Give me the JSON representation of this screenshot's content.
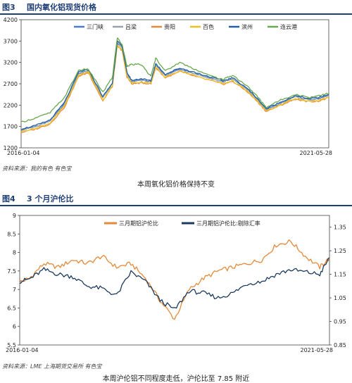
{
  "figure3": {
    "number": "图3",
    "title": "国内氧化铝现货价格",
    "source": "资料来源：我的有色    有色宝",
    "caption": "本周氧化铝价格保持不变"
  },
  "figure4": {
    "number": "图4",
    "title": "3 个月沪伦比",
    "source": "资料来源：LME    上海期货交易所    有色宝",
    "caption": "本周沪伦铝不同程度走低，沪伦比至 7.85 附近"
  },
  "chart_data": [
    {
      "type": "line",
      "title": "",
      "xlabel": "",
      "ylabel": "",
      "x_start": "2016-01-04",
      "x_end": "2021-05-28",
      "x_ticks": [
        "2016-01-04",
        "2021-05-28"
      ],
      "ylim": [
        1200,
        4200
      ],
      "yticks": [
        1200,
        1700,
        2200,
        2700,
        3200,
        3700,
        4200
      ],
      "grid": false,
      "legend": "top",
      "x": [
        "2016-01",
        "2016-04",
        "2016-07",
        "2016-10",
        "2017-01",
        "2017-03",
        "2017-06",
        "2017-08",
        "2017-09",
        "2017-10",
        "2017-11",
        "2017-12",
        "2018-02",
        "2018-04",
        "2018-05",
        "2018-07",
        "2018-10",
        "2019-01",
        "2019-04",
        "2019-07",
        "2019-09",
        "2019-12",
        "2020-02",
        "2020-04",
        "2020-07",
        "2020-10",
        "2021-01",
        "2021-03",
        "2021-05"
      ],
      "series": [
        {
          "name": "三门峡",
          "color": "#4a7bd0",
          "values": [
            1630,
            1700,
            1830,
            2230,
            2950,
            3000,
            2380,
            2700,
            3650,
            3550,
            2950,
            2750,
            2800,
            2750,
            3150,
            2900,
            3050,
            2950,
            2850,
            2750,
            2820,
            2580,
            2350,
            2100,
            2250,
            2400,
            2330,
            2360,
            2430
          ]
        },
        {
          "name": "吕梁",
          "color": "#9aa3ad",
          "values": [
            1620,
            1690,
            1820,
            2220,
            2940,
            2990,
            2370,
            2700,
            3680,
            3540,
            2920,
            2760,
            2780,
            2740,
            3140,
            2880,
            3040,
            2940,
            2840,
            2740,
            2810,
            2570,
            2340,
            2080,
            2240,
            2390,
            2320,
            2350,
            2420
          ]
        },
        {
          "name": "贵阳",
          "color": "#e5893a",
          "values": [
            1560,
            1640,
            1760,
            2150,
            2880,
            2960,
            2300,
            2640,
            3580,
            3480,
            2860,
            2700,
            2720,
            2700,
            3080,
            2840,
            2990,
            2880,
            2790,
            2690,
            2760,
            2520,
            2300,
            2050,
            2200,
            2340,
            2280,
            2300,
            2380
          ]
        },
        {
          "name": "百色",
          "color": "#f0c020",
          "values": [
            1580,
            1660,
            1780,
            2180,
            2900,
            2980,
            2320,
            2660,
            3600,
            3500,
            2880,
            2720,
            2740,
            2710,
            3090,
            2850,
            3000,
            2890,
            2800,
            2700,
            2770,
            2530,
            2310,
            2060,
            2210,
            2350,
            2290,
            2310,
            2390
          ]
        },
        {
          "name": "滨州",
          "color": "#2060a8",
          "values": [
            1640,
            1720,
            1850,
            2260,
            2980,
            3030,
            2400,
            2720,
            3700,
            3580,
            2970,
            2780,
            2820,
            2770,
            3170,
            2920,
            3070,
            2970,
            2870,
            2770,
            2840,
            2600,
            2370,
            2120,
            2270,
            2420,
            2350,
            2380,
            2450
          ]
        },
        {
          "name": "连云港",
          "color": "#6aa84f",
          "values": [
            1800,
            1900,
            2020,
            2380,
            3020,
            3040,
            2500,
            2850,
            3780,
            3620,
            3120,
            3150,
            3150,
            2870,
            3300,
            3000,
            3200,
            3050,
            2900,
            2800,
            2900,
            2650,
            2420,
            2150,
            2320,
            2450,
            2380,
            2430,
            2480
          ]
        }
      ]
    },
    {
      "type": "line",
      "title": "",
      "xlabel": "",
      "ylabel": "",
      "x_start": "2016-01-04",
      "x_end": "2021-05-28",
      "x_ticks": [
        "2016-01-04",
        "2021-05-28"
      ],
      "ylim": [
        5.5,
        9
      ],
      "yticks": [
        5.5,
        6,
        6.5,
        7,
        7.5,
        8,
        8.5,
        9
      ],
      "ylim_right": [
        0.85,
        1.4
      ],
      "yticks_right": [
        0.85,
        0.95,
        1.05,
        1.15,
        1.25,
        1.35
      ],
      "grid": false,
      "legend": "top",
      "x": [
        "2016-01",
        "2016-03",
        "2016-06",
        "2016-09",
        "2016-12",
        "2017-03",
        "2017-06",
        "2017-09",
        "2017-12",
        "2018-03",
        "2018-06",
        "2018-09",
        "2018-12",
        "2019-03",
        "2019-06",
        "2019-09",
        "2019-12",
        "2020-03",
        "2020-06",
        "2020-09",
        "2020-12",
        "2021-03",
        "2021-05"
      ],
      "series": [
        {
          "name": "三月期铝沪伦比",
          "axis": "left",
          "color": "#e5893a",
          "values": [
            7.2,
            7.3,
            7.7,
            7.6,
            7.8,
            7.7,
            7.9,
            7.6,
            7.7,
            7.3,
            6.7,
            6.2,
            7.0,
            7.3,
            7.5,
            7.6,
            7.7,
            7.8,
            8.2,
            8.3,
            7.9,
            7.6,
            7.85
          ]
        },
        {
          "name": "三月期铝沪伦比:剔除汇率",
          "axis": "right",
          "color": "#1c3a5e",
          "values": [
            1.12,
            1.13,
            1.17,
            1.15,
            1.14,
            1.1,
            1.09,
            1.06,
            1.16,
            1.12,
            1.04,
            1.0,
            1.08,
            1.07,
            1.05,
            1.07,
            1.11,
            1.12,
            1.15,
            1.17,
            1.16,
            1.15,
            1.22
          ]
        }
      ]
    }
  ]
}
